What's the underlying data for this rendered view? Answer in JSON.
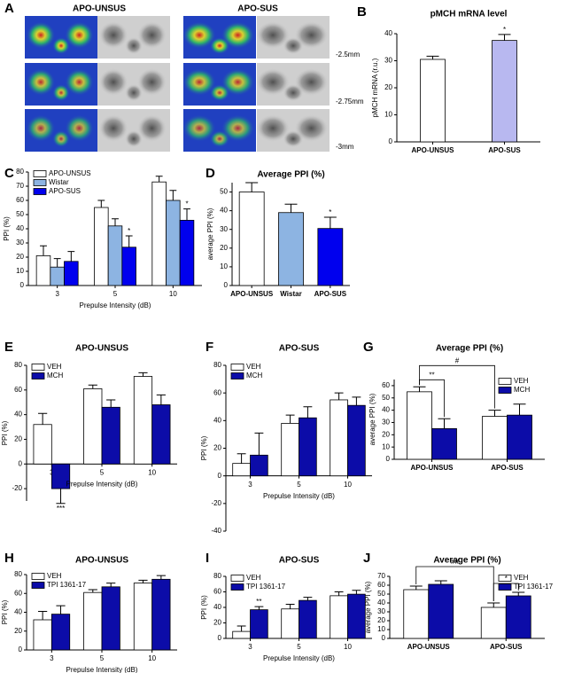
{
  "panel_a": {
    "letter": "A",
    "titles": [
      "APO-UNSUS",
      "APO-SUS"
    ],
    "levels": [
      "-2.5mm",
      "-2.75mm",
      "-3mm"
    ]
  },
  "chart_data": [
    {
      "type": "bar",
      "panel": "B",
      "title": "pMCH mRNA level",
      "ylabel": "pMCH mRNA (r.u.)",
      "categories": [
        "APO-UNSUS",
        "APO-SUS"
      ],
      "ylim": [
        0,
        40
      ],
      "yticks": [
        0,
        10,
        20,
        30,
        40
      ],
      "series": [
        {
          "colors": [
            "#ffffff",
            "#b8b8f0"
          ],
          "values": [
            30.5,
            37.5
          ],
          "errors": [
            1.2,
            2.2
          ],
          "significance": [
            null,
            "*"
          ]
        }
      ]
    },
    {
      "type": "bar",
      "panel": "C",
      "ylabel": "PPI (%)",
      "xlabel": "Prepulse Intensity (dB)",
      "categories": [
        "3",
        "5",
        "10"
      ],
      "ylim": [
        0,
        80
      ],
      "yticks": [
        0,
        10,
        20,
        30,
        40,
        50,
        60,
        70,
        80
      ],
      "legend": "upper left",
      "series": [
        {
          "name": "APO-UNSUS",
          "color": "#ffffff",
          "values": [
            21,
            55,
            73
          ],
          "errors": [
            7,
            5,
            4
          ]
        },
        {
          "name": "Wistar",
          "color": "#8db4e2",
          "values": [
            13,
            42,
            60
          ],
          "errors": [
            6,
            5,
            7
          ]
        },
        {
          "name": "APO-SUS",
          "color": "#0000ee",
          "values": [
            17,
            27,
            46
          ],
          "errors": [
            7,
            8,
            8
          ],
          "significance": [
            null,
            "*",
            "*"
          ]
        }
      ]
    },
    {
      "type": "bar",
      "panel": "D",
      "title": "Average PPI (%)",
      "ylabel": "average PPI (%)",
      "categories": [
        "APO-UNSUS",
        "Wistar",
        "APO-SUS"
      ],
      "ylim": [
        0,
        55
      ],
      "yticks": [
        0,
        10,
        20,
        30,
        40,
        50
      ],
      "series": [
        {
          "colors": [
            "#ffffff",
            "#8db4e2",
            "#0000ee"
          ],
          "values": [
            50,
            39,
            30.5
          ],
          "errors": [
            5,
            4.5,
            6
          ],
          "significance": [
            null,
            null,
            "*"
          ]
        }
      ]
    },
    {
      "type": "bar",
      "panel": "E",
      "title": "APO-UNSUS",
      "ylabel": "PPI (%)",
      "xlabel": "Prepulse Intensity (dB)",
      "categories": [
        "3",
        "5",
        "10"
      ],
      "ylim": [
        -30,
        80
      ],
      "yticks": [
        -20,
        0,
        20,
        40,
        60,
        80
      ],
      "legend": "upper left",
      "series": [
        {
          "name": "VEH",
          "color": "#ffffff",
          "values": [
            32,
            61,
            71
          ],
          "errors": [
            9,
            3,
            3
          ]
        },
        {
          "name": "MCH",
          "color": "#0c0ca8",
          "values": [
            -20,
            46,
            48
          ],
          "errors": [
            12,
            6,
            8
          ],
          "significance": [
            "***",
            null,
            null
          ]
        }
      ]
    },
    {
      "type": "bar",
      "panel": "F",
      "title": "APO-SUS",
      "ylabel": "PPI (%)",
      "xlabel": "Prepulse Intensity (dB)",
      "categories": [
        "3",
        "5",
        "10"
      ],
      "ylim": [
        -40,
        80
      ],
      "yticks": [
        -40,
        -20,
        0,
        20,
        40,
        60,
        80
      ],
      "legend": "upper left",
      "series": [
        {
          "name": "VEH",
          "color": "#ffffff",
          "values": [
            9,
            38,
            55
          ],
          "errors": [
            7,
            6,
            5
          ]
        },
        {
          "name": "MCH",
          "color": "#0c0ca8",
          "values": [
            15,
            42,
            51
          ],
          "errors": [
            16,
            8,
            6
          ]
        }
      ]
    },
    {
      "type": "bar",
      "panel": "G",
      "title": "Average PPI (%)",
      "ylabel": "average PPI (%)",
      "categories": [
        "APO-UNSUS",
        "APO-SUS"
      ],
      "ylim": [
        0,
        65
      ],
      "yticks": [
        0,
        10,
        20,
        30,
        40,
        50,
        60
      ],
      "legend": "upper right",
      "series": [
        {
          "name": "VEH",
          "color": "#ffffff",
          "values": [
            55,
            35
          ],
          "errors": [
            4,
            5
          ]
        },
        {
          "name": "MCH",
          "color": "#0c0ca8",
          "values": [
            25,
            36
          ],
          "errors": [
            8,
            9
          ]
        }
      ],
      "brackets": [
        "**",
        "#"
      ]
    },
    {
      "type": "bar",
      "panel": "H",
      "title": "APO-UNSUS",
      "ylabel": "PPI (%)",
      "xlabel": "Prepulse Intensity (dB)",
      "categories": [
        "3",
        "5",
        "10"
      ],
      "ylim": [
        0,
        80
      ],
      "yticks": [
        0,
        20,
        40,
        60,
        80
      ],
      "legend": "upper left",
      "series": [
        {
          "name": "VEH",
          "color": "#ffffff",
          "values": [
            32,
            61,
            71
          ],
          "errors": [
            9,
            3,
            3
          ]
        },
        {
          "name": "TPI 1361-17",
          "color": "#0c0ca8",
          "values": [
            38,
            67,
            75
          ],
          "errors": [
            9,
            4,
            4
          ]
        }
      ]
    },
    {
      "type": "bar",
      "panel": "I",
      "title": "APO-SUS",
      "ylabel": "PPI (%)",
      "xlabel": "Prepulse Intensity (dB)",
      "categories": [
        "3",
        "5",
        "10"
      ],
      "ylim": [
        0,
        80
      ],
      "yticks": [
        0,
        20,
        40,
        60,
        80
      ],
      "legend": "upper left",
      "series": [
        {
          "name": "VEH",
          "color": "#ffffff",
          "values": [
            9,
            38,
            55
          ],
          "errors": [
            7,
            6,
            5
          ]
        },
        {
          "name": "TPI 1361-17",
          "color": "#0c0ca8",
          "values": [
            37,
            49,
            57
          ],
          "errors": [
            4,
            4,
            5
          ],
          "significance": [
            "**",
            null,
            null
          ]
        }
      ]
    },
    {
      "type": "bar",
      "panel": "J",
      "title": "Average PPI (%)",
      "ylabel": "average PPI (%)",
      "categories": [
        "APO-UNSUS",
        "APO-SUS"
      ],
      "ylim": [
        0,
        70
      ],
      "yticks": [
        0,
        10,
        20,
        30,
        40,
        50,
        60,
        70
      ],
      "legend": "upper right",
      "series": [
        {
          "name": "VEH",
          "color": "#ffffff",
          "values": [
            55,
            35
          ],
          "errors": [
            4,
            5
          ]
        },
        {
          "name": "TPI 1361-17",
          "color": "#0c0ca8",
          "values": [
            61,
            48
          ],
          "errors": [
            4,
            4
          ]
        }
      ],
      "brackets": [
        "##",
        "*"
      ]
    }
  ]
}
